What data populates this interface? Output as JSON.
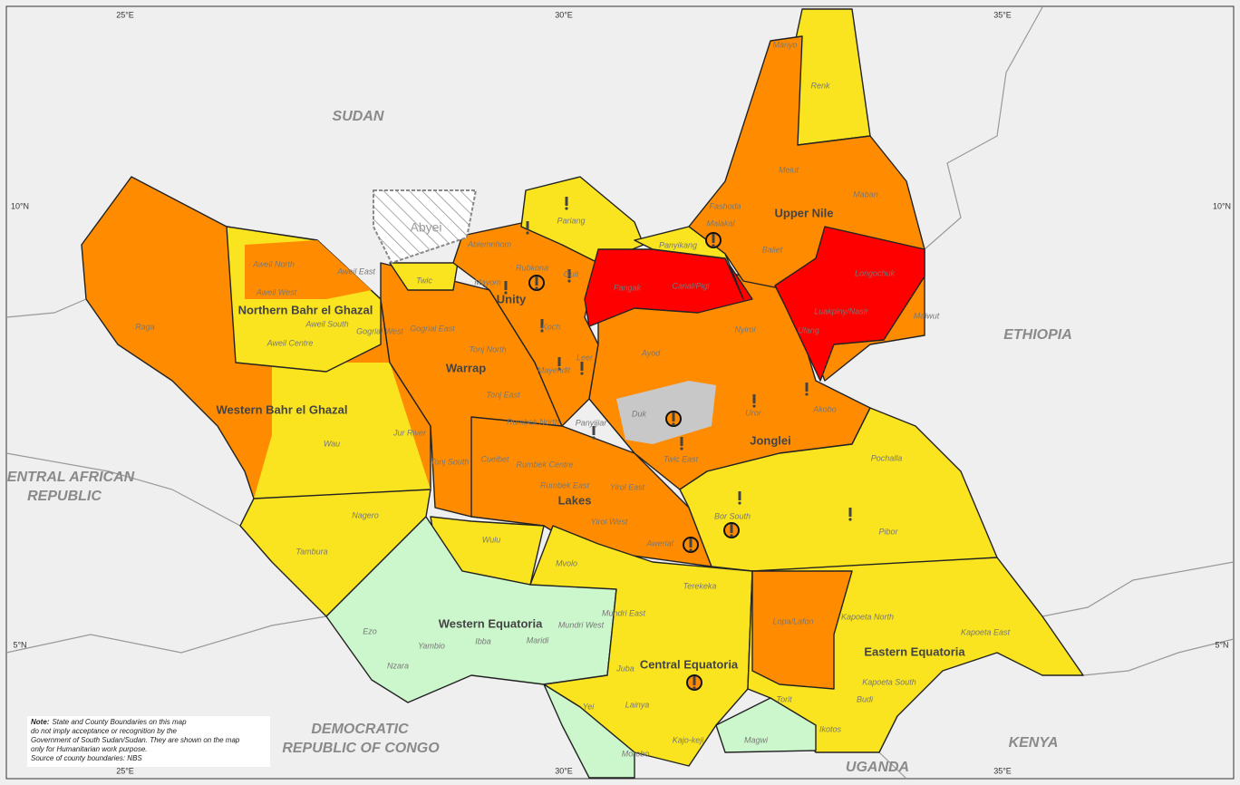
{
  "graticule": {
    "top": [
      "25°E",
      "30°E",
      "35°E"
    ],
    "bottom": [
      "25°E",
      "30°E",
      "35°E"
    ],
    "left": [
      "10°N",
      "5°N"
    ],
    "right": [
      "10°N",
      "5°N"
    ]
  },
  "countries": [
    [
      "SUDAN"
    ],
    [
      "ETHIOPIA"
    ],
    [
      "ENTRAL AFRICAN",
      "REPUBLIC"
    ],
    [
      "DEMOCRATIC",
      "REPUBLIC OF CONGO"
    ],
    [
      "KENYA"
    ],
    [
      "UGANDA"
    ]
  ],
  "disputed": "Abyei",
  "states": [
    "Upper Nile",
    "Unity",
    "Northern Bahr el Ghazal",
    "Warrap",
    "Western Bahr el Ghazal",
    "Jonglei",
    "Lakes",
    "Western Equatoria",
    "Central Equatoria",
    "Eastern Equatoria"
  ],
  "counties": [
    "Manyo",
    "Renk",
    "Melut",
    "Maban",
    "Fashoda",
    "Malakal",
    "Baliet",
    "Panyikang",
    "Longochuk",
    "Maiwut",
    "Luakpiny/Nasir",
    "Ulang",
    "Nyirol",
    "Pariang",
    "Abiemnhom",
    "Rubkona",
    "Guit",
    "Mayom",
    "Fangak",
    "Canal/Pigi",
    "Aweil North",
    "Aweil East",
    "Aweil West",
    "Twic",
    "Aweil South",
    "Gogrial West",
    "Aweil Centre",
    "Gogrial East",
    "Raga",
    "Koch",
    "Ayod",
    "Tonj North",
    "Mayendit",
    "Leer",
    "Tonj East",
    "Duk",
    "Uror",
    "Akobo",
    "Rumbek North",
    "Panyijiar",
    "Jur River",
    "Wau",
    "Tonj South",
    "Cueibet",
    "Rumbek Centre",
    "Twic East",
    "Pochalla",
    "Rumbek East",
    "Yirol East",
    "Bor South",
    "Nagero",
    "Yirol West",
    "Pibor",
    "Wulu",
    "Awerial",
    "Tambura",
    "Mvolo",
    "Terekeka",
    "Mundri East",
    "Kapoeta North",
    "Lopa/Lafon",
    "Mundri West",
    "Kapoeta East",
    "Ezo",
    "Yambio",
    "Ibba",
    "Maridi",
    "Juba",
    "Nzara",
    "Kapoeta South",
    "Torit",
    "Budi",
    "Lainya",
    "Yei",
    "Ikotos",
    "Kajo-keji",
    "Magwi",
    "Morobo"
  ],
  "note": {
    "label": "Note:",
    "lines": [
      "State and County Boundaries on this map",
      "do not imply acceptance or recognition by the",
      "Government of South Sudan/Sudan. They are shown on the map",
      "only for Humanitarian work purpose.",
      "Source of county boundaries: NBS"
    ]
  }
}
